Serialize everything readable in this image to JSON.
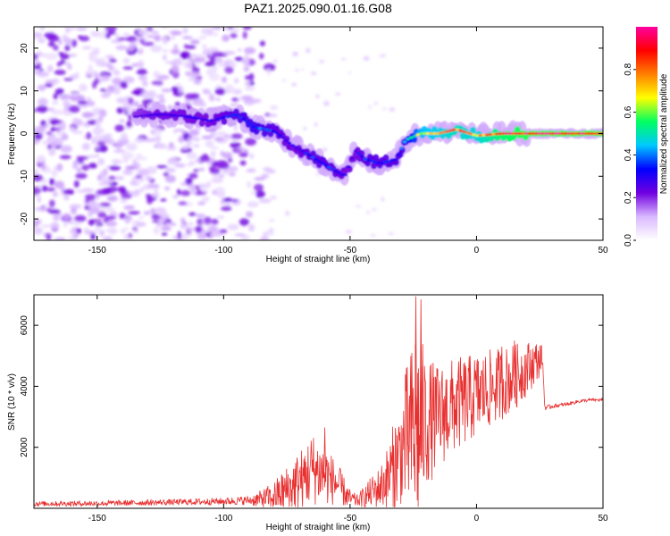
{
  "figure": {
    "title": "PAZ1.2025.090.01.16.G08",
    "background": "#ffffff"
  },
  "chart_data": [
    {
      "type": "heatmap",
      "name": "spectrogram",
      "xlabel": "Height of straight line (km)",
      "ylabel": "Frequency (Hz)",
      "xlim": [
        -175,
        50
      ],
      "ylim": [
        -25,
        25
      ],
      "xticks": [
        -150,
        -100,
        -50,
        0,
        50
      ],
      "yticks": [
        -20,
        -10,
        0,
        10,
        20
      ],
      "grid": false,
      "colorbar": {
        "label": "Normalized spectral amplitude",
        "range": [
          0,
          1
        ],
        "ticks": [
          "0.0",
          "0.2",
          "0.4",
          "0.6",
          "0.8"
        ],
        "colormap": [
          "#ffffff",
          "#d9b8ff",
          "#7000e0",
          "#0000ff",
          "#00c8ff",
          "#00ff60",
          "#ffff00",
          "#ff8000",
          "#ff0000",
          "#ff00a0"
        ]
      },
      "ridge": {
        "x": [
          -135,
          -125,
          -115,
          -105,
          -95,
          -88,
          -80,
          -72,
          -65,
          -58,
          -52,
          -48,
          -44,
          -38,
          -32,
          -28,
          -22,
          -15,
          -8,
          0,
          10,
          20,
          30,
          40,
          50
        ],
        "y": [
          4,
          4.5,
          4,
          3,
          4.5,
          1.5,
          0.5,
          -3,
          -5.5,
          -8,
          -10,
          -4,
          -6,
          -7,
          -6,
          -1.5,
          0,
          0,
          1,
          -0.5,
          0,
          0,
          0,
          0,
          0
        ],
        "amplitude": [
          0.25,
          0.3,
          0.3,
          0.3,
          0.35,
          0.4,
          0.35,
          0.3,
          0.35,
          0.35,
          0.3,
          0.3,
          0.35,
          0.35,
          0.35,
          0.4,
          0.7,
          0.75,
          0.8,
          0.75,
          0.9,
          0.95,
          0.95,
          0.95,
          0.95
        ]
      }
    },
    {
      "type": "line",
      "name": "snr",
      "xlabel": "Height of straight line (km)",
      "ylabel": "SNR (10 * v/v)",
      "xlim": [
        -175,
        50
      ],
      "ylim": [
        0,
        7000
      ],
      "xticks": [
        -150,
        -100,
        -50,
        0,
        50
      ],
      "yticks": [
        2000,
        4000,
        6000
      ],
      "grid": false,
      "color": "#e83030",
      "envelope": {
        "x": [
          -175,
          -150,
          -120,
          -100,
          -90,
          -85,
          -80,
          -75,
          -70,
          -65,
          -60,
          -55,
          -50,
          -47,
          -42,
          -38,
          -35,
          -32,
          -30,
          -28,
          -26,
          -24,
          -22,
          -20,
          -15,
          -10,
          -5,
          0,
          5,
          10,
          15,
          20,
          25,
          26,
          27,
          28,
          30,
          35,
          40,
          45,
          50
        ],
        "mean": [
          150,
          160,
          200,
          230,
          260,
          300,
          400,
          600,
          900,
          1300,
          1100,
          800,
          300,
          250,
          500,
          700,
          1000,
          1500,
          1800,
          2200,
          2400,
          2600,
          2700,
          2800,
          3000,
          3300,
          3500,
          3700,
          3900,
          4100,
          4300,
          4600,
          4900,
          5000,
          3300,
          3300,
          3350,
          3400,
          3500,
          3550,
          3550
        ],
        "amplitude": [
          80,
          90,
          100,
          120,
          150,
          300,
          500,
          800,
          1000,
          1200,
          1000,
          700,
          300,
          200,
          500,
          700,
          1100,
          1600,
          1700,
          2400,
          2800,
          3800,
          3000,
          2200,
          1700,
          1600,
          1500,
          1400,
          1300,
          1200,
          1100,
          900,
          600,
          300,
          80,
          80,
          70,
          60,
          60,
          50,
          50
        ],
        "spikes": [
          {
            "x": -24,
            "y": 6950
          },
          {
            "x": -22,
            "y": 6850
          },
          {
            "x": -60,
            "y": 2650
          },
          {
            "x": 15,
            "y": 5500
          },
          {
            "x": 10,
            "y": 5300
          }
        ]
      }
    }
  ]
}
